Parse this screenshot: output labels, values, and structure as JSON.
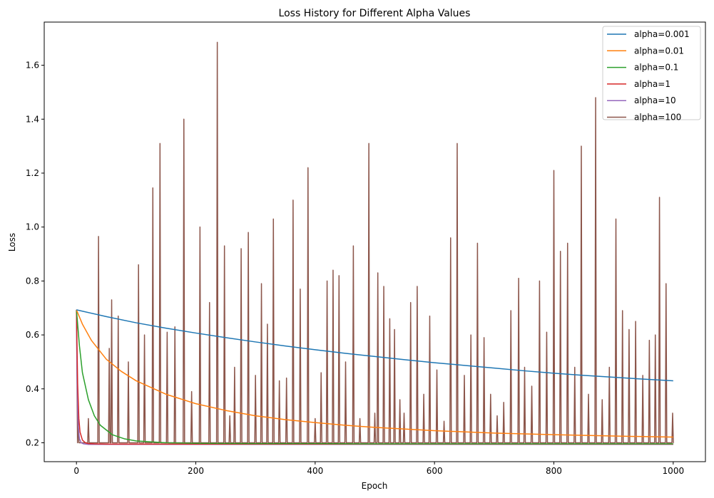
{
  "chart_data": {
    "type": "line",
    "title": "Loss History for Different Alpha Values",
    "xlabel": "Epoch",
    "ylabel": "Loss",
    "xlim": [
      -54,
      1054
    ],
    "ylim": [
      0.13,
      1.76
    ],
    "xticks": [
      0,
      200,
      400,
      600,
      800,
      1000
    ],
    "yticks": [
      0.2,
      0.4,
      0.6,
      0.8,
      1.0,
      1.2,
      1.4,
      1.6
    ],
    "grid": false,
    "legend_position": "top-right",
    "series": [
      {
        "name": "alpha=0.001",
        "color": "#1f77b4",
        "x": [
          0,
          50,
          100,
          150,
          200,
          250,
          300,
          350,
          400,
          450,
          500,
          550,
          600,
          650,
          700,
          750,
          800,
          850,
          900,
          950,
          1000
        ],
        "y": [
          0.693,
          0.668,
          0.645,
          0.625,
          0.607,
          0.59,
          0.574,
          0.559,
          0.545,
          0.532,
          0.52,
          0.508,
          0.497,
          0.487,
          0.477,
          0.467,
          0.458,
          0.45,
          0.443,
          0.436,
          0.43
        ]
      },
      {
        "name": "alpha=0.01",
        "color": "#ff7f0e",
        "x": [
          0,
          10,
          25,
          50,
          75,
          100,
          150,
          200,
          250,
          300,
          350,
          400,
          450,
          500,
          600,
          700,
          800,
          900,
          1000
        ],
        "y": [
          0.693,
          0.64,
          0.58,
          0.51,
          0.465,
          0.43,
          0.38,
          0.345,
          0.32,
          0.3,
          0.286,
          0.275,
          0.265,
          0.257,
          0.245,
          0.236,
          0.23,
          0.225,
          0.221
        ]
      },
      {
        "name": "alpha=0.1",
        "color": "#2ca02c",
        "x": [
          0,
          5,
          10,
          20,
          30,
          40,
          60,
          80,
          100,
          150,
          200,
          300,
          400,
          500,
          600,
          800,
          1000
        ],
        "y": [
          0.693,
          0.56,
          0.46,
          0.36,
          0.3,
          0.265,
          0.23,
          0.215,
          0.207,
          0.2,
          0.198,
          0.197,
          0.197,
          0.196,
          0.196,
          0.196,
          0.196
        ]
      },
      {
        "name": "alpha=1",
        "color": "#d62728",
        "x": [
          0,
          2,
          4,
          6,
          10,
          15,
          20,
          30,
          50,
          100,
          1000
        ],
        "y": [
          0.693,
          0.42,
          0.29,
          0.24,
          0.21,
          0.2,
          0.197,
          0.196,
          0.195,
          0.195,
          0.195
        ]
      },
      {
        "name": "alpha=10",
        "color": "#9467bd",
        "x": [
          0,
          1,
          2,
          3,
          5,
          8,
          12,
          20,
          40,
          1000
        ],
        "y": [
          0.693,
          0.45,
          0.32,
          0.26,
          0.215,
          0.2,
          0.196,
          0.194,
          0.194,
          0.194
        ]
      },
      {
        "name": "alpha=100",
        "color": "#8c564b",
        "x": [
          0,
          3,
          20,
          37,
          55,
          59,
          70,
          87,
          104,
          114,
          128,
          140,
          152,
          165,
          180,
          193,
          207,
          223,
          236,
          248,
          257,
          265,
          276,
          288,
          300,
          310,
          320,
          330,
          340,
          352,
          363,
          375,
          388,
          400,
          410,
          420,
          430,
          440,
          451,
          464,
          475,
          490,
          500,
          505,
          515,
          525,
          533,
          542,
          549,
          560,
          571,
          582,
          592,
          604,
          616,
          627,
          638,
          650,
          661,
          672,
          683,
          694,
          705,
          716,
          728,
          741,
          751,
          763,
          776,
          788,
          800,
          811,
          823,
          835,
          846,
          858,
          870,
          881,
          893,
          904,
          915,
          926,
          937,
          949,
          960,
          970,
          977,
          988,
          999
        ],
        "peaks": [
          0.693,
          0.28,
          0.29,
          0.965,
          0.55,
          0.73,
          0.67,
          0.5,
          0.86,
          0.6,
          1.145,
          1.31,
          0.61,
          0.63,
          1.4,
          0.39,
          1.0,
          0.72,
          1.685,
          0.93,
          0.3,
          0.48,
          0.92,
          0.98,
          0.45,
          0.79,
          0.64,
          1.03,
          0.43,
          0.44,
          1.1,
          0.77,
          1.22,
          0.29,
          0.46,
          0.8,
          0.84,
          0.82,
          0.5,
          0.93,
          0.29,
          1.31,
          0.31,
          0.83,
          0.78,
          0.66,
          0.62,
          0.36,
          0.31,
          0.72,
          0.78,
          0.38,
          0.67,
          0.47,
          0.28,
          0.96,
          1.31,
          0.45,
          0.6,
          0.94,
          0.59,
          0.38,
          0.3,
          0.35,
          0.69,
          0.81,
          0.48,
          0.41,
          0.8,
          0.61,
          1.21,
          0.91,
          0.94,
          0.48,
          1.3,
          0.38,
          1.48,
          0.36,
          0.48,
          1.03,
          0.69,
          0.62,
          0.65,
          0.45,
          0.58,
          0.6,
          1.11,
          0.79,
          0.31
        ],
        "baseline": 0.2
      }
    ]
  }
}
